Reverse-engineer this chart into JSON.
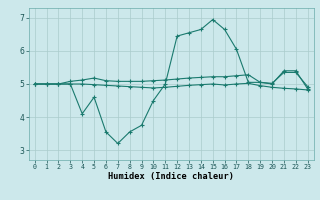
{
  "xlabel": "Humidex (Indice chaleur)",
  "bg_color": "#cce8eb",
  "grid_color": "#aacccc",
  "line_color": "#1a7a6e",
  "xlim": [
    -0.5,
    23.5
  ],
  "ylim": [
    2.7,
    7.3
  ],
  "yticks": [
    3,
    4,
    5,
    6,
    7
  ],
  "xticks": [
    0,
    1,
    2,
    3,
    4,
    5,
    6,
    7,
    8,
    9,
    10,
    11,
    12,
    13,
    14,
    15,
    16,
    17,
    18,
    19,
    20,
    21,
    22,
    23
  ],
  "line1_x": [
    0,
    1,
    2,
    3,
    4,
    5,
    6,
    7,
    8,
    9,
    10,
    11,
    12,
    13,
    14,
    15,
    16,
    17,
    18,
    19,
    20,
    21,
    22,
    23
  ],
  "line1_y": [
    5.0,
    5.0,
    5.0,
    5.0,
    4.1,
    4.6,
    3.55,
    3.2,
    3.55,
    3.75,
    4.5,
    5.0,
    6.45,
    6.55,
    6.65,
    6.95,
    6.65,
    6.05,
    5.05,
    5.05,
    5.0,
    5.4,
    5.4,
    4.85
  ],
  "line2_x": [
    0,
    1,
    2,
    3,
    4,
    5,
    6,
    7,
    8,
    9,
    10,
    11,
    12,
    13,
    14,
    15,
    16,
    17,
    18,
    19,
    20,
    21,
    22,
    23
  ],
  "line2_y": [
    5.0,
    5.0,
    5.0,
    5.08,
    5.12,
    5.18,
    5.1,
    5.08,
    5.08,
    5.08,
    5.1,
    5.12,
    5.15,
    5.18,
    5.2,
    5.22,
    5.22,
    5.25,
    5.28,
    5.05,
    5.02,
    5.35,
    5.35,
    4.92
  ],
  "line3_x": [
    0,
    1,
    2,
    3,
    4,
    5,
    6,
    7,
    8,
    9,
    10,
    11,
    12,
    13,
    14,
    15,
    16,
    17,
    18,
    19,
    20,
    21,
    22,
    23
  ],
  "line3_y": [
    5.0,
    5.0,
    5.0,
    5.0,
    5.0,
    4.98,
    4.96,
    4.94,
    4.92,
    4.9,
    4.88,
    4.9,
    4.93,
    4.96,
    4.98,
    5.0,
    4.97,
    5.0,
    5.02,
    4.95,
    4.9,
    4.87,
    4.85,
    4.82
  ]
}
